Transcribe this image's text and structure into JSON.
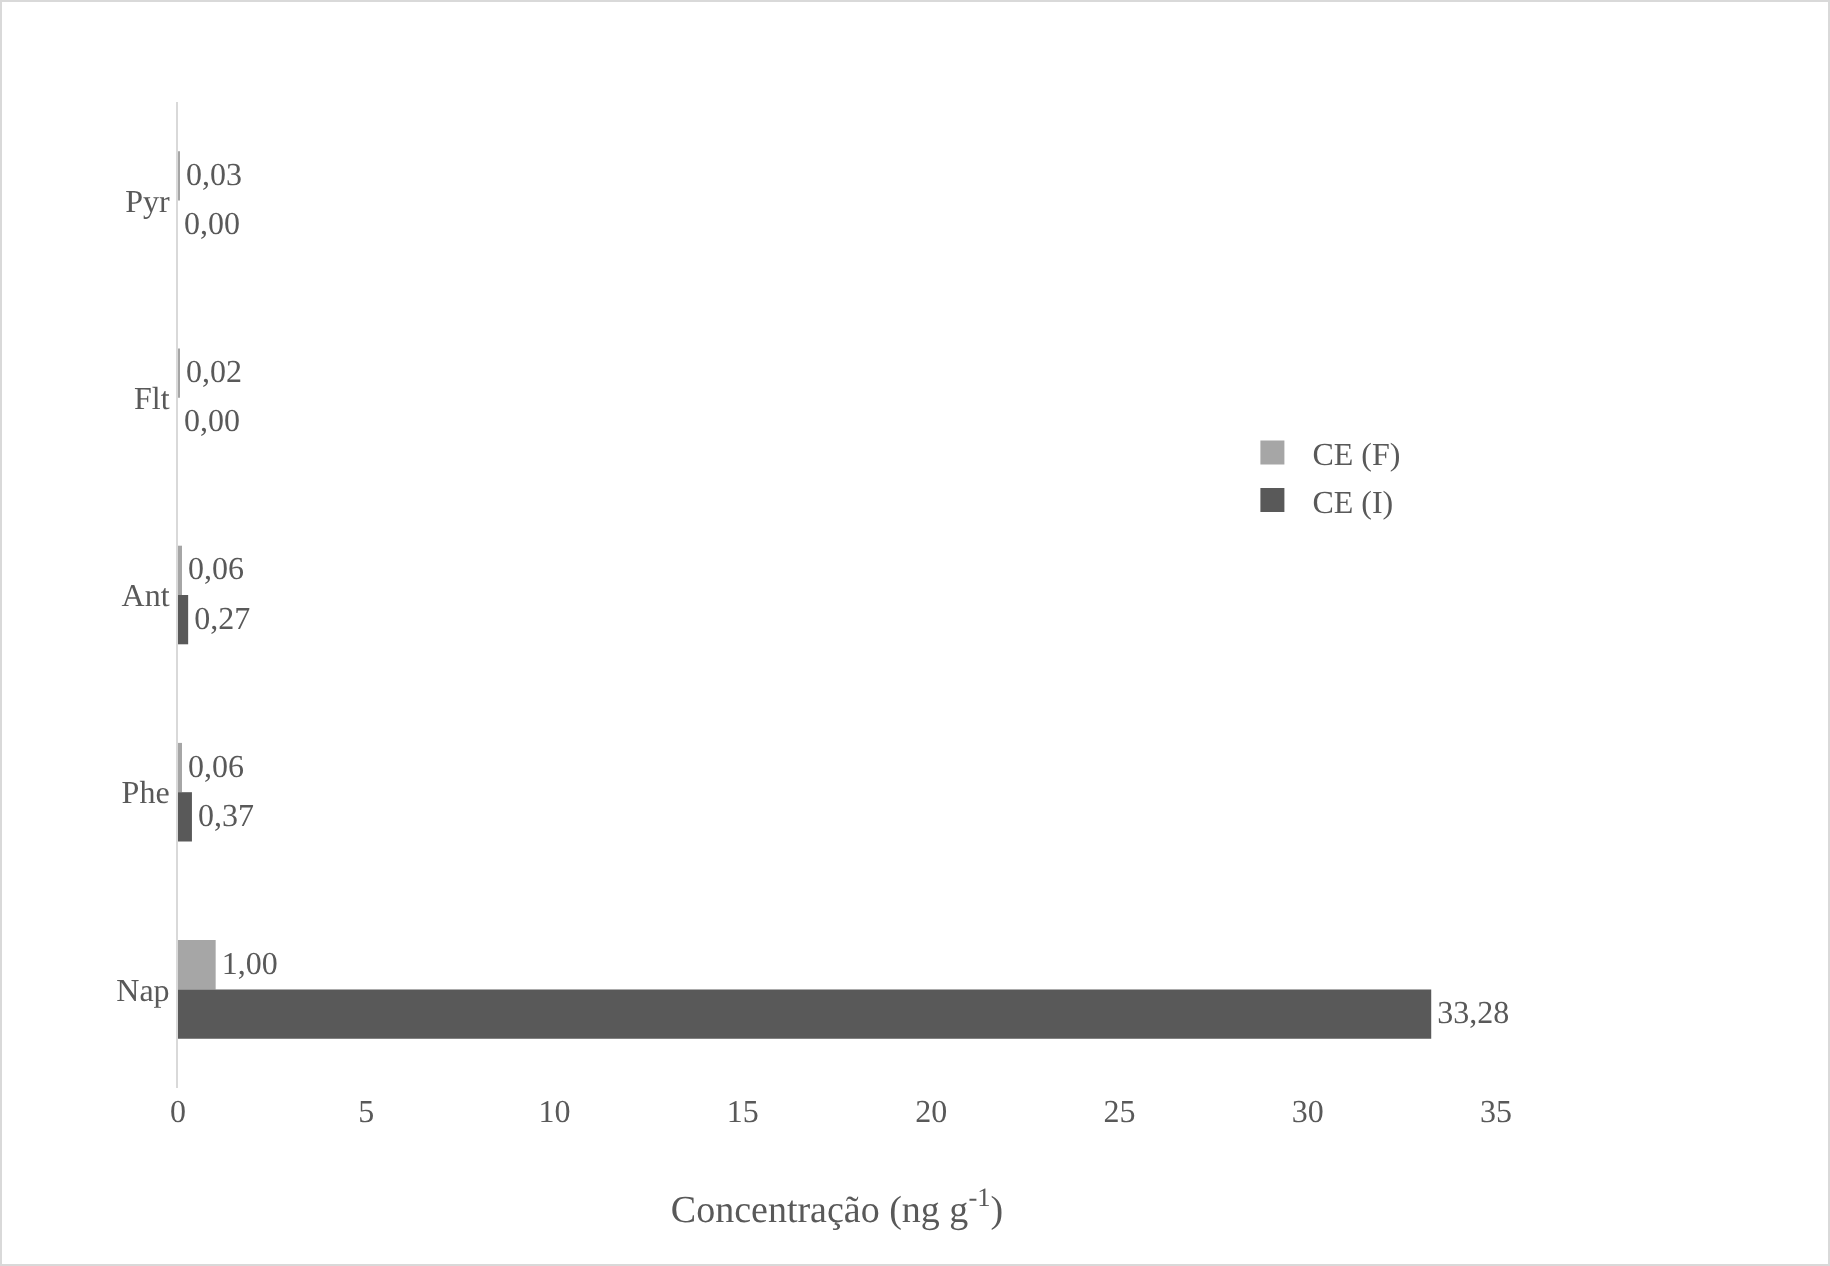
{
  "chart_data": {
    "type": "bar",
    "orientation": "horizontal",
    "xlabel": "Concentração (ng g$^{-1}$)",
    "categories": [
      "Pyr",
      "Flt",
      "Ant",
      "Phe",
      "Nap"
    ],
    "series": [
      {
        "name": "CE (F)",
        "color": "#a6a6a6",
        "values": [
          0.03,
          0.02,
          0.06,
          0.06,
          1.0
        ],
        "value_labels": [
          "0,03",
          "0,02",
          "0,06",
          "0,06",
          "1,00"
        ]
      },
      {
        "name": "CE (I)",
        "color": "#595959",
        "values": [
          0,
          0,
          0.27,
          0.37,
          33.28
        ],
        "value_labels": [
          "0,00",
          "0,00",
          "0,27",
          "0,37",
          "33,28"
        ]
      }
    ],
    "xlim": [
      0,
      35
    ],
    "xticks": [
      0,
      5,
      10,
      15,
      20,
      25,
      30,
      35
    ],
    "grid": false,
    "legend": "right"
  }
}
